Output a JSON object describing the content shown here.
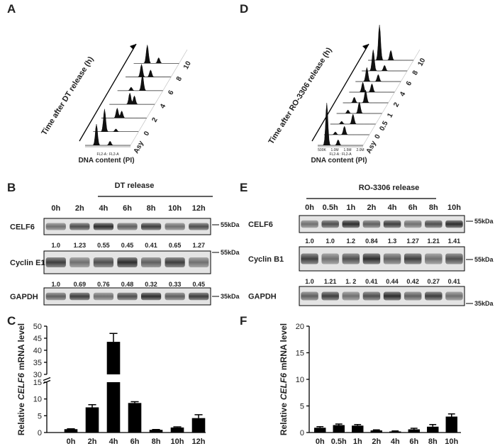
{
  "panels": {
    "A": {
      "letter": "A",
      "y_label": "Time after DT release (h)",
      "x_label": "DNA  content (PI)",
      "timepoints": [
        "Asy",
        "0",
        "2",
        "4",
        "6",
        "8",
        "10"
      ],
      "channel": "FL2-A : FL2-A"
    },
    "D": {
      "letter": "D",
      "y_label": "Time after RO-3306 release (h)",
      "x_label": "DNA  content (PI)",
      "timepoints": [
        "Asy",
        "0",
        "0.5",
        "1",
        "2",
        "4",
        "6",
        "8",
        "10"
      ],
      "channel": "FL2-A : FL2-A",
      "axis_ticks": [
        "500K",
        "1.0M",
        "1.5M",
        "2.0M"
      ]
    },
    "B": {
      "letter": "B",
      "title": "DT release",
      "timepoints": [
        "0h",
        "2h",
        "4h",
        "6h",
        "8h",
        "10h",
        "12h"
      ],
      "rows": [
        {
          "name": "CELF6",
          "marker": "55kDa",
          "quant": [
            "1.0",
            "1.23",
            "0.55",
            "0.45",
            "0.41",
            "0.65",
            "1.27"
          ]
        },
        {
          "name": "Cyclin E1",
          "marker": "55kDa",
          "quant": [
            "1.0",
            "0.69",
            "0.76",
            "0.48",
            "0.32",
            "0.33",
            "0.45"
          ]
        },
        {
          "name": "GAPDH",
          "marker": "35kDa"
        }
      ]
    },
    "E": {
      "letter": "E",
      "title": "RO-3306 release",
      "timepoints": [
        "0h",
        "0.5h",
        "1h",
        "2h",
        "4h",
        "6h",
        "8h",
        "10h"
      ],
      "rows": [
        {
          "name": "CELF6",
          "marker": "55kDa",
          "quant": [
            "1.0",
            "1.0",
            "1.2",
            "0.84",
            "1.3",
            "1.27",
            "1.21",
            "1.41"
          ]
        },
        {
          "name": "Cyclin B1",
          "marker": "55kDa",
          "quant": [
            "1.0",
            "1.21",
            "1. 2",
            "0.41",
            "0.44",
            "0.42",
            "0.27",
            "0.41"
          ]
        },
        {
          "name": "GAPDH",
          "marker": "35kDa"
        }
      ]
    },
    "C": {
      "letter": "C"
    },
    "F": {
      "letter": "F"
    }
  },
  "chart_data": [
    {
      "type": "bar",
      "ylabel_parts": [
        "Relative",
        "CELF6",
        "mRNA level"
      ],
      "categories": [
        "0h",
        "2h",
        "4h",
        "6h",
        "8h",
        "10h",
        "12h"
      ],
      "values": [
        1.0,
        7.5,
        43.5,
        8.8,
        0.8,
        1.5,
        4.3
      ],
      "errors": [
        0.1,
        0.8,
        3.5,
        0.4,
        0.1,
        0.2,
        1.0
      ],
      "color": "#000000",
      "segments": [
        {
          "ylim": [
            0,
            15
          ],
          "yticks": [
            0,
            5,
            10,
            15
          ]
        },
        {
          "ylim": [
            30,
            50
          ],
          "yticks": [
            30,
            35,
            40,
            45,
            50
          ]
        }
      ]
    },
    {
      "type": "bar",
      "ylabel_parts": [
        "Relative",
        "CELF6",
        "mRNA level"
      ],
      "categories": [
        "0h",
        "0.5h",
        "1h",
        "2h",
        "4h",
        "6h",
        "8h",
        "10h"
      ],
      "values": [
        0.9,
        1.4,
        1.3,
        0.4,
        0.2,
        0.6,
        1.1,
        3.0
      ],
      "errors": [
        0.2,
        0.2,
        0.2,
        0.1,
        0.1,
        0.2,
        0.4,
        0.5
      ],
      "color": "#000000",
      "ylim": [
        0,
        20
      ],
      "yticks": [
        0,
        5,
        10,
        15,
        20
      ]
    }
  ]
}
